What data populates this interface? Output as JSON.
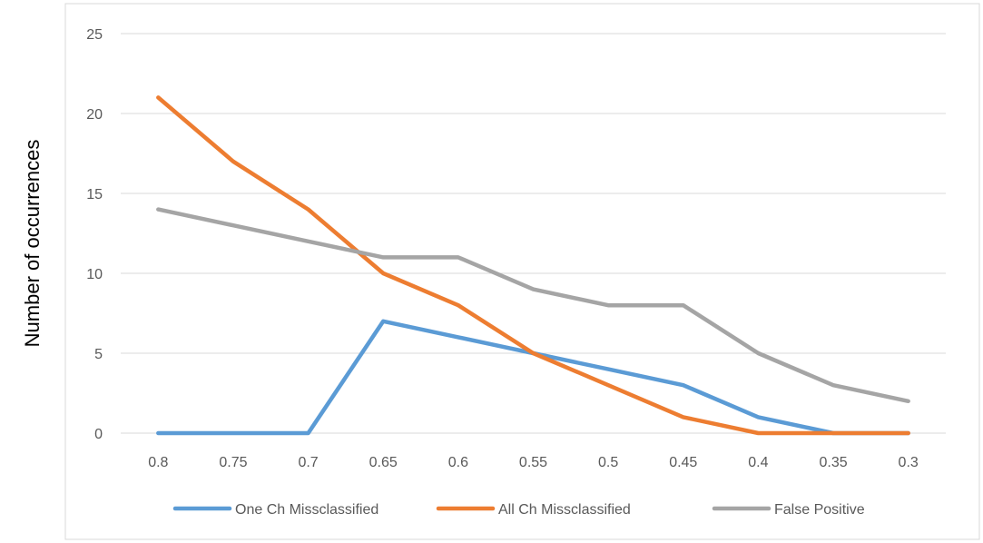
{
  "chart_data": {
    "type": "line",
    "title": "",
    "xlabel": "",
    "ylabel": "Number of occurrences",
    "categories": [
      "0.8",
      "0.75",
      "0.7",
      "0.65",
      "0.6",
      "0.55",
      "0.5",
      "0.45",
      "0.4",
      "0.35",
      "0.3"
    ],
    "ylim": [
      0,
      25
    ],
    "yticks": [
      0,
      5,
      10,
      15,
      20,
      25
    ],
    "grid": true,
    "legend_position": "bottom",
    "series": [
      {
        "name": "One Ch Missclassified",
        "color": "#5B9BD5",
        "values": [
          0,
          0,
          0,
          7,
          6,
          5,
          4,
          3,
          1,
          0,
          0
        ]
      },
      {
        "name": "All Ch Missclassified",
        "color": "#ED7D31",
        "values": [
          21,
          17,
          14,
          10,
          8,
          5,
          3,
          1,
          0,
          0,
          0
        ]
      },
      {
        "name": "False Positive",
        "color": "#A5A5A5",
        "values": [
          14,
          13,
          12,
          11,
          11,
          9,
          8,
          8,
          5,
          3,
          2
        ]
      }
    ]
  }
}
